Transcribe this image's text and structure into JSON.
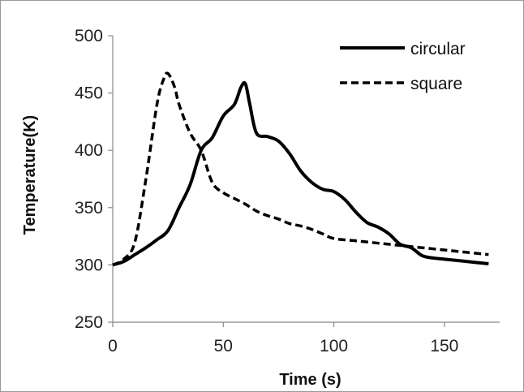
{
  "chart_data": {
    "type": "line",
    "title": "",
    "xlabel": "Time (s)",
    "ylabel": "Temperature(K)",
    "xlim": [
      0,
      175
    ],
    "ylim": [
      250,
      500
    ],
    "x_ticks": [
      0,
      50,
      100,
      150
    ],
    "y_ticks": [
      250,
      300,
      350,
      400,
      450,
      500
    ],
    "x_tick_labels": [
      "0",
      "50",
      "100",
      "150"
    ],
    "y_tick_labels": [
      "250",
      "300",
      "350",
      "400",
      "450",
      "500"
    ],
    "grid": false,
    "legend_position": "top-right",
    "series": [
      {
        "name": "circular",
        "style": "solid",
        "color": "#000000",
        "x": [
          0,
          5,
          10,
          15,
          20,
          25,
          30,
          35,
          40,
          45,
          50,
          55,
          58,
          60,
          62,
          65,
          70,
          75,
          80,
          85,
          90,
          95,
          100,
          105,
          110,
          115,
          120,
          125,
          130,
          135,
          140,
          145,
          150,
          160,
          170
        ],
        "y": [
          300,
          303,
          309,
          315,
          322,
          330,
          350,
          370,
          400,
          411,
          430,
          440,
          455,
          458,
          440,
          415,
          412,
          408,
          397,
          382,
          372,
          366,
          364,
          357,
          346,
          337,
          333,
          327,
          318,
          315,
          308,
          306,
          305,
          303,
          301
        ]
      },
      {
        "name": "square",
        "style": "dashed",
        "color": "#000000",
        "x": [
          0,
          5,
          10,
          15,
          20,
          23,
          25,
          28,
          30,
          35,
          40,
          45,
          50,
          55,
          60,
          65,
          70,
          75,
          80,
          85,
          90,
          95,
          100,
          110,
          120,
          130,
          140,
          150,
          160,
          170
        ],
        "y": [
          300,
          305,
          320,
          375,
          440,
          462,
          467,
          455,
          440,
          415,
          400,
          372,
          363,
          358,
          353,
          347,
          343,
          340,
          336,
          334,
          331,
          327,
          323,
          321,
          319,
          317,
          315,
          313,
          311,
          309
        ]
      }
    ]
  }
}
